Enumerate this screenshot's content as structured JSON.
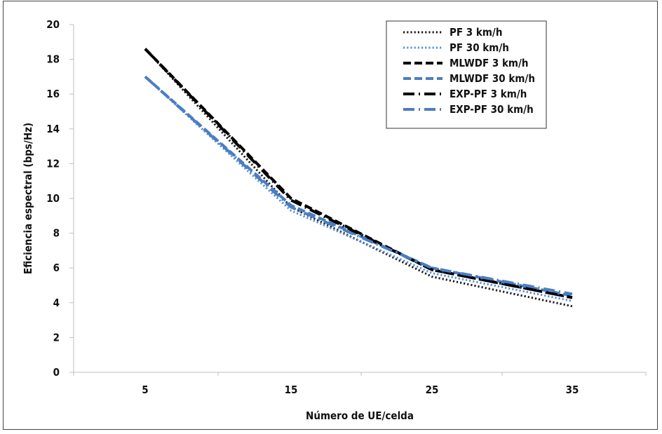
{
  "chart_data": {
    "type": "line",
    "title": "",
    "xlabel": "Número de UE/celda",
    "ylabel": "Eficiencia espectral (bps/Hz)",
    "x": [
      5,
      15,
      25,
      35
    ],
    "x_tick_labels": [
      "5",
      "15",
      "25",
      "35"
    ],
    "ylim": [
      0,
      20
    ],
    "y_ticks": [
      0,
      2,
      4,
      6,
      8,
      10,
      12,
      14,
      16,
      18,
      20
    ],
    "grid": false,
    "legend_position": "top-right",
    "series": [
      {
        "name": "PF 3 km/h",
        "values": [
          18.6,
          9.5,
          5.5,
          3.8
        ],
        "color": "#1a1a1a",
        "style": "dotted"
      },
      {
        "name": "PF 30 km/h",
        "values": [
          17.0,
          9.3,
          5.7,
          4.1
        ],
        "color": "#5b8fd6",
        "style": "dotted"
      },
      {
        "name": "MLWDF 3 km/h",
        "values": [
          18.6,
          10.0,
          5.9,
          4.3
        ],
        "color": "#000000",
        "style": "dashed"
      },
      {
        "name": "MLWDF 30 km/h",
        "values": [
          17.0,
          9.6,
          6.0,
          4.4
        ],
        "color": "#4a7ec4",
        "style": "dashed"
      },
      {
        "name": "EXP-PF 3 km/h",
        "values": [
          18.6,
          9.9,
          5.9,
          4.3
        ],
        "color": "#000000",
        "style": "dash-dot"
      },
      {
        "name": "EXP-PF 30 km/h",
        "values": [
          17.0,
          9.5,
          6.0,
          4.5
        ],
        "color": "#4a7ec4",
        "style": "dash-dot"
      }
    ]
  }
}
